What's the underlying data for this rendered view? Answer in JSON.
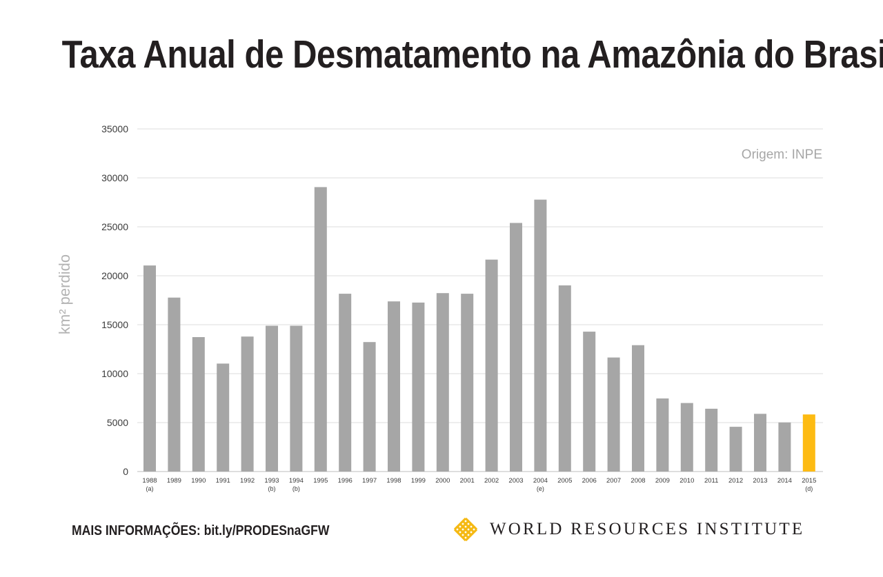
{
  "title": "Taxa Anual de Desmatamento na Amazônia do Brasil",
  "footer": {
    "more_info": "MAIS INFORMAÇÕES: bit.ly/PRODESnaGFW",
    "org_name": "WORLD RESOURCES INSTITUTE",
    "logo_icon": "wri-lattice-logo-icon",
    "logo_color": "#f5b913"
  },
  "chart_data": {
    "type": "bar",
    "title": "",
    "xlabel": "",
    "ylabel": "km² perdido",
    "source_note": "Origem: INPE",
    "ylim": [
      0,
      35000
    ],
    "yticks": [
      0,
      5000,
      10000,
      15000,
      20000,
      25000,
      30000,
      35000
    ],
    "grid": true,
    "bar_color": "#a6a6a6",
    "highlight_color": "#fdbb13",
    "highlight_category": "2015",
    "categories": [
      "1988",
      "1989",
      "1990",
      "1991",
      "1992",
      "1993",
      "1994",
      "1995",
      "1996",
      "1997",
      "1998",
      "1999",
      "2000",
      "2001",
      "2002",
      "2003",
      "2004",
      "2005",
      "2006",
      "2007",
      "2008",
      "2009",
      "2010",
      "2011",
      "2012",
      "2013",
      "2014",
      "2015"
    ],
    "category_notes": [
      "(a)",
      "",
      "",
      "",
      "",
      "(b)",
      "(b)",
      "",
      "",
      "",
      "",
      "",
      "",
      "",
      "",
      "",
      "(e)",
      "",
      "",
      "",
      "",
      "",
      "",
      "",
      "",
      "",
      "",
      "(d)"
    ],
    "values": [
      21050,
      17770,
      13730,
      11030,
      13786,
      14896,
      14896,
      29059,
      18161,
      13227,
      17383,
      17259,
      18226,
      18165,
      21651,
      25396,
      27772,
      19014,
      14286,
      11651,
      12911,
      7464,
      7000,
      6418,
      4571,
      5891,
      5012,
      5831
    ]
  }
}
